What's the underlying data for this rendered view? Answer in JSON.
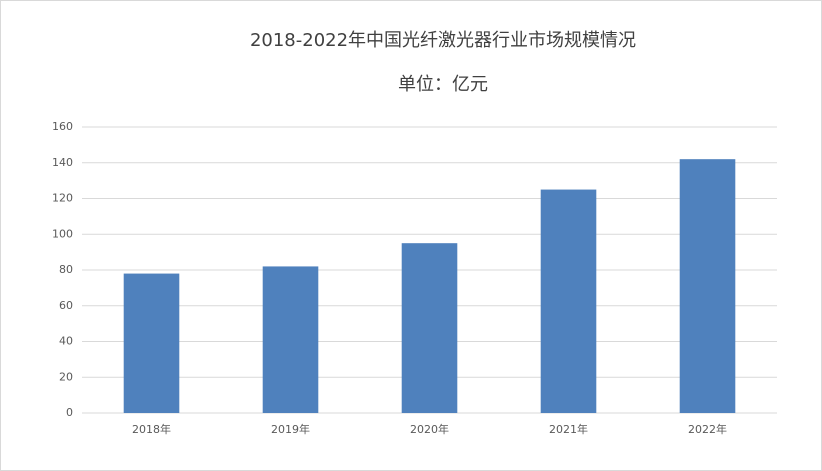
{
  "chart_data": {
    "type": "bar",
    "title": "2018-2022年中国光纤激光器行业市场规模情况",
    "subtitle": "单位：亿元",
    "categories": [
      "2018年",
      "2019年",
      "2020年",
      "2021年",
      "2022年"
    ],
    "values": [
      78,
      82,
      95,
      125,
      142
    ],
    "color": "#4f81bd",
    "ylim": [
      0,
      160
    ],
    "yticks": [
      0,
      20,
      40,
      60,
      80,
      100,
      120,
      140,
      160
    ],
    "grid": true
  }
}
